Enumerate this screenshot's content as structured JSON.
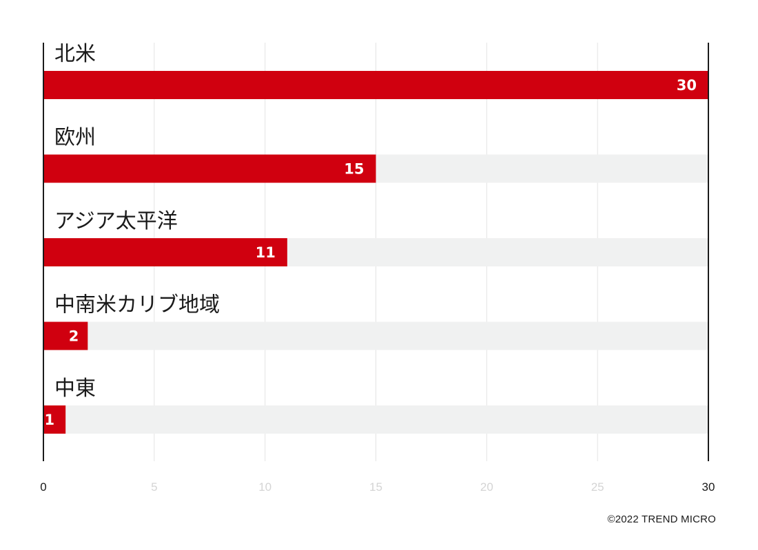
{
  "chart_data": {
    "type": "bar",
    "orientation": "horizontal",
    "categories": [
      "北米",
      "欧州",
      "アジア太平洋",
      "中南米カリブ地域",
      "中東"
    ],
    "values": [
      30,
      15,
      11,
      2,
      1
    ],
    "xlim": [
      0,
      30
    ],
    "xticks": [
      0,
      5,
      10,
      15,
      20,
      25,
      30
    ],
    "grid": true,
    "bar_color": "#d0000f",
    "track_color": "#f0f1f1",
    "data_labels": true
  },
  "footer": {
    "copyright": "©2022 TREND MICRO"
  }
}
